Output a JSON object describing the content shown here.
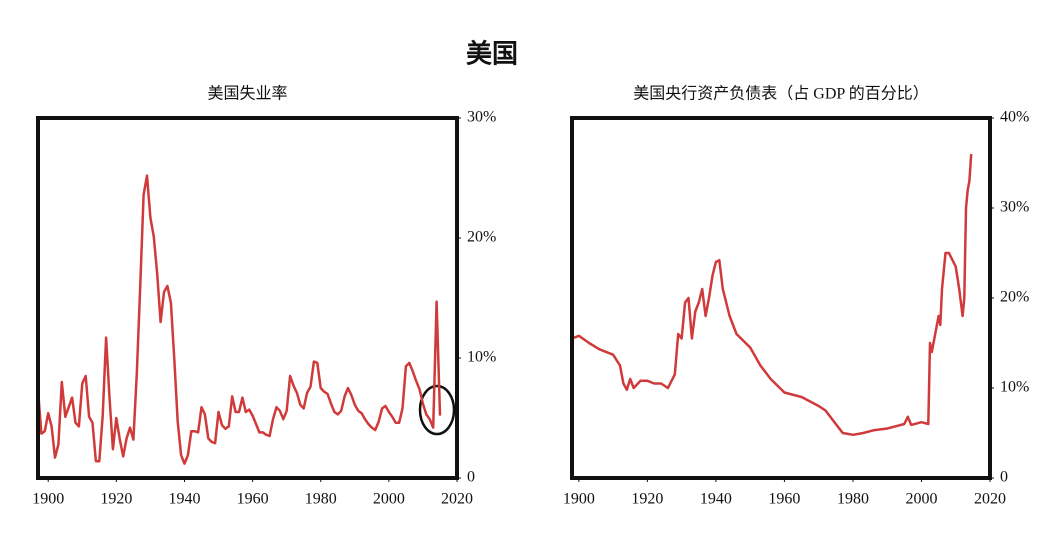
{
  "title": "美国",
  "chart_data": [
    {
      "type": "line",
      "title": "美国失业率",
      "color": "#d03a3a",
      "xlim": [
        1897,
        2020
      ],
      "xticks": [
        1900,
        1920,
        1940,
        1960,
        1980,
        2000,
        2020
      ],
      "ylim": [
        0,
        30
      ],
      "yticks": [
        0,
        {
          "value": 10,
          "label": "10%"
        },
        {
          "value": 20,
          "label": "20%"
        },
        {
          "value": 30,
          "label": "30%"
        }
      ],
      "x": [
        1897,
        1898,
        1899,
        1900,
        1901,
        1902,
        1903,
        1904,
        1905,
        1906,
        1907,
        1908,
        1909,
        1910,
        1911,
        1912,
        1913,
        1914,
        1915,
        1916,
        1917,
        1918,
        1919,
        1920,
        1921,
        1922,
        1923,
        1924,
        1925,
        1926,
        1927,
        1928,
        1929,
        1930,
        1931,
        1932,
        1933,
        1934,
        1935,
        1936,
        1937,
        1938,
        1939,
        1940,
        1941,
        1942,
        1943,
        1944,
        1945,
        1946,
        1947,
        1948,
        1949,
        1950,
        1951,
        1952,
        1953,
        1954,
        1955,
        1956,
        1957,
        1958,
        1959,
        1960,
        1961,
        1962,
        1963,
        1964,
        1965,
        1966,
        1967,
        1968,
        1969,
        1970,
        1971,
        1972,
        1973,
        1974,
        1975,
        1976,
        1977,
        1978,
        1979,
        1980,
        1981,
        1982,
        1983,
        1984,
        1985,
        1986,
        1987,
        1988,
        1989,
        1990,
        1991,
        1992,
        1993,
        1994,
        1995,
        1996,
        1997,
        1998,
        1999,
        2000,
        2001,
        2002,
        2003,
        2004,
        2005,
        2006,
        2007,
        2008,
        2009,
        2010,
        2011,
        2012,
        2013,
        2014,
        2015
      ],
      "values": [
        7.3,
        3.7,
        3.9,
        5.4,
        4.3,
        1.7,
        2.8,
        8,
        5.1,
        5.9,
        6.7,
        4.6,
        4.3,
        7.9,
        8.5,
        5.1,
        4.6,
        1.4,
        1.4,
        5.2,
        11.7,
        6.7,
        2.4,
        5,
        3.2,
        1.8,
        3.3,
        4.2,
        3.2,
        8.7,
        15.9,
        23.6,
        25.2,
        21.7,
        20.1,
        17,
        13,
        15.5,
        16,
        14.6,
        9.9,
        4.7,
        1.9,
        1.2,
        1.9,
        3.9,
        3.9,
        3.8,
        5.9,
        5.3,
        3.3,
        3,
        2.9,
        5.5,
        4.4,
        4.1,
        4.3,
        6.8,
        5.5,
        5.5,
        6.7,
        5.5,
        5.7,
        5.2,
        4.5,
        3.8,
        3.8,
        3.6,
        3.5,
        4.9,
        5.9,
        5.6,
        4.9,
        5.6,
        8.5,
        7.7,
        7.1,
        6.1,
        5.8,
        7.1,
        7.6,
        9.7,
        9.6,
        7.5,
        7.2,
        7,
        6.2,
        5.5,
        5.3,
        5.6,
        6.8,
        7.5,
        6.9,
        6.1,
        5.6,
        5.4,
        4.9,
        4.5,
        4.2,
        4,
        4.7,
        5.8,
        6,
        5.5,
        5.1,
        4.6,
        4.6,
        5.8,
        9.3,
        9.6,
        8.9,
        8.1,
        7.4,
        6.2,
        5.3,
        4.9,
        4.2,
        14.7,
        5.2
      ]
    },
    {
      "type": "line",
      "title": "美国央行资产负债表（占 GDP 的百分比）",
      "color": "#d03a3a",
      "xlim": [
        1898,
        2020
      ],
      "xticks": [
        1900,
        1920,
        1940,
        1960,
        1980,
        2000,
        2020
      ],
      "ylim": [
        0,
        40
      ],
      "yticks": [
        0,
        {
          "value": 10,
          "label": "10%"
        },
        {
          "value": 20,
          "label": "20%"
        },
        {
          "value": 30,
          "label": "30%"
        },
        {
          "value": 40,
          "label": "40%"
        }
      ],
      "x": [
        1898,
        1900,
        1903,
        1906,
        1910,
        1912,
        1913,
        1914,
        1915,
        1916,
        1918,
        1920,
        1922,
        1924,
        1926,
        1928,
        1929,
        1930,
        1931,
        1932,
        1933,
        1934,
        1935,
        1936,
        1937,
        1938,
        1939,
        1940,
        1941,
        1942,
        1944,
        1946,
        1950,
        1953,
        1956,
        1960,
        1965,
        1970,
        1972,
        1975,
        1977,
        1980,
        1983,
        1986,
        1990,
        1993,
        1995,
        1996,
        1997,
        2000,
        2002,
        2002.5,
        2003,
        2004,
        2005,
        2005.5,
        2006,
        2007,
        2008,
        2010,
        2011,
        2012,
        2012.5,
        2013,
        2013.5,
        2014,
        2014.5
      ],
      "values": [
        15.5,
        15.8,
        15,
        14.3,
        13.7,
        12.5,
        10.5,
        9.8,
        11,
        10,
        10.8,
        10.8,
        10.5,
        10.5,
        10,
        11.5,
        16,
        15.5,
        19.5,
        20,
        15.5,
        18.5,
        19.5,
        21,
        18,
        20,
        22.5,
        24,
        24.2,
        21,
        18,
        16,
        14.5,
        12.5,
        11,
        9.5,
        9,
        8,
        7.5,
        6,
        5,
        4.8,
        5,
        5.3,
        5.5,
        5.8,
        6,
        6.8,
        5.9,
        6.2,
        6,
        15,
        14,
        16,
        18,
        17,
        21,
        25,
        25,
        23.5,
        21,
        18,
        20,
        30,
        32,
        33,
        36
      ]
    }
  ]
}
